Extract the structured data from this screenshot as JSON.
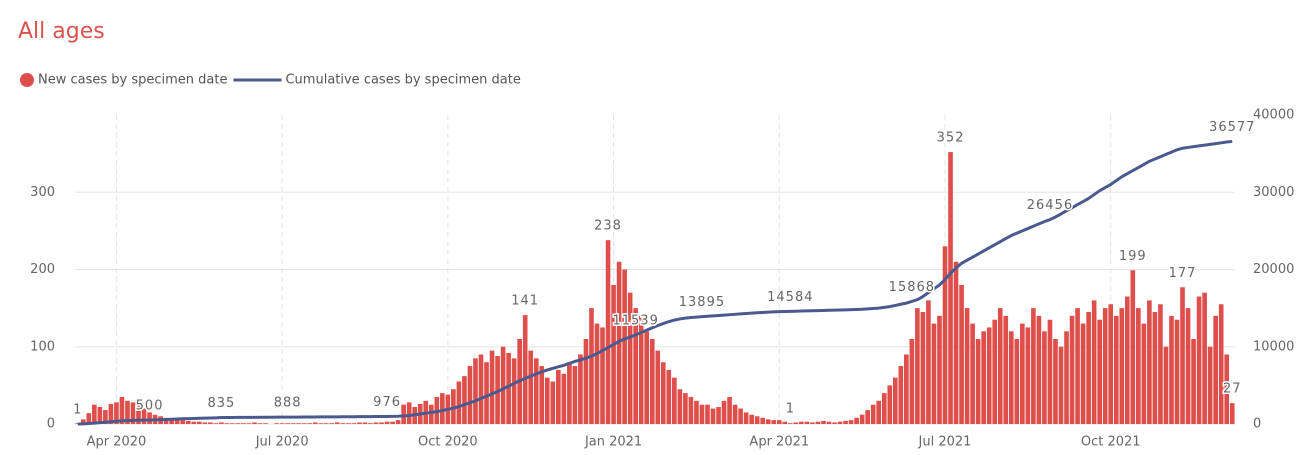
{
  "chart_data": {
    "type": "combo",
    "title": "All ages",
    "categories": [
      null,
      null,
      null,
      null,
      null,
      null,
      null,
      "Apr 2020",
      null,
      null,
      null,
      null,
      null,
      null,
      null,
      null,
      null,
      null,
      null,
      null,
      null,
      null,
      null,
      null,
      null,
      null,
      null,
      null,
      null,
      null,
      null,
      null,
      null,
      null,
      null,
      null,
      null,
      "Jul 2020",
      null,
      null,
      null,
      null,
      null,
      null,
      null,
      null,
      null,
      null,
      null,
      null,
      null,
      null,
      null,
      null,
      null,
      null,
      null,
      null,
      null,
      null,
      null,
      null,
      null,
      null,
      null,
      null,
      null,
      "Oct 2020",
      null,
      null,
      null,
      null,
      null,
      null,
      null,
      null,
      null,
      null,
      null,
      null,
      null,
      null,
      null,
      null,
      null,
      null,
      null,
      null,
      null,
      null,
      null,
      null,
      null,
      null,
      null,
      null,
      null,
      "Jan 2021",
      null,
      null,
      null,
      null,
      null,
      null,
      null,
      null,
      null,
      null,
      null,
      null,
      null,
      null,
      null,
      null,
      null,
      null,
      null,
      null,
      null,
      null,
      null,
      null,
      null,
      null,
      null,
      null,
      null,
      "Apr 2021",
      null,
      null,
      null,
      null,
      null,
      null,
      null,
      null,
      null,
      null,
      null,
      null,
      null,
      null,
      null,
      null,
      null,
      null,
      null,
      null,
      null,
      null,
      null,
      null,
      null,
      null,
      null,
      null,
      null,
      "Jul 2021",
      null,
      null,
      null,
      null,
      null,
      null,
      null,
      null,
      null,
      null,
      null,
      null,
      null,
      null,
      null,
      null,
      null,
      null,
      null,
      null,
      null,
      null,
      null,
      null,
      null,
      null,
      null,
      null,
      null,
      "Oct 2021",
      null,
      null,
      null,
      null,
      null,
      null,
      null,
      null,
      null,
      null,
      null,
      null,
      null,
      null,
      null,
      null,
      null,
      null,
      null,
      null,
      null,
      null
    ],
    "series": [
      {
        "name": "New cases by specimen date",
        "type": "bar",
        "color": "#de4f4b",
        "values": [
          1,
          6,
          14,
          25,
          22,
          18,
          26,
          28,
          35,
          30,
          28,
          24,
          20,
          15,
          12,
          10,
          8,
          6,
          5,
          5,
          4,
          3,
          3,
          2,
          2,
          1,
          2,
          1,
          1,
          1,
          1,
          1,
          2,
          1,
          1,
          0,
          1,
          1,
          1,
          1,
          1,
          1,
          1,
          2,
          1,
          1,
          1,
          2,
          1,
          1,
          1,
          2,
          2,
          1,
          2,
          2,
          3,
          3,
          5,
          25,
          28,
          22,
          26,
          30,
          25,
          35,
          40,
          38,
          45,
          55,
          62,
          75,
          85,
          90,
          80,
          95,
          88,
          100,
          92,
          85,
          110,
          141,
          95,
          85,
          75,
          60,
          55,
          70,
          65,
          80,
          75,
          90,
          110,
          150,
          130,
          125,
          238,
          180,
          210,
          200,
          170,
          150,
          140,
          120,
          110,
          95,
          80,
          70,
          60,
          45,
          40,
          35,
          30,
          25,
          25,
          20,
          22,
          30,
          35,
          25,
          20,
          15,
          12,
          10,
          8,
          6,
          5,
          5,
          3,
          1,
          2,
          3,
          3,
          2,
          3,
          4,
          3,
          2,
          3,
          4,
          5,
          8,
          12,
          18,
          25,
          30,
          40,
          50,
          60,
          75,
          90,
          110,
          150,
          145,
          160,
          130,
          140,
          230,
          352,
          210,
          180,
          150,
          130,
          110,
          120,
          125,
          135,
          150,
          140,
          120,
          110,
          130,
          125,
          150,
          140,
          120,
          135,
          110,
          100,
          120,
          140,
          150,
          130,
          145,
          160,
          135,
          150,
          155,
          140,
          150,
          165,
          199,
          150,
          130,
          160,
          145,
          155,
          100,
          140,
          135,
          177,
          150,
          110,
          165,
          170,
          100,
          140,
          155,
          90,
          27
        ],
        "value_labels": [
          null,
          null,
          null,
          null,
          null,
          null,
          null,
          null,
          null,
          null,
          null,
          null,
          null,
          null,
          null,
          null,
          null,
          null,
          null,
          null,
          null,
          null,
          null,
          null,
          null,
          null,
          null,
          null,
          null,
          null,
          null,
          null,
          null,
          null,
          null,
          null,
          null,
          null,
          null,
          null,
          null,
          null,
          null,
          null,
          null,
          null,
          null,
          null,
          null,
          null,
          null,
          null,
          null,
          null,
          null,
          null,
          null,
          null,
          null,
          null,
          null,
          null,
          null,
          null,
          null,
          null,
          null,
          null,
          null,
          null,
          null,
          null,
          null,
          null,
          null,
          null,
          null,
          null,
          null,
          null,
          null,
          "141",
          null,
          null,
          null,
          null,
          null,
          null,
          null,
          null,
          null,
          null,
          null,
          null,
          null,
          null,
          "238",
          null,
          null,
          null,
          null,
          null,
          null,
          null,
          null,
          null,
          null,
          null,
          null,
          null,
          null,
          null,
          null,
          null,
          null,
          null,
          null,
          null,
          null,
          null,
          null,
          null,
          null,
          null,
          null,
          null,
          null,
          null,
          null,
          "1",
          null,
          null,
          null,
          null,
          null,
          null,
          null,
          null,
          null,
          null,
          null,
          null,
          null,
          null,
          null,
          null,
          null,
          null,
          null,
          null,
          null,
          null,
          null,
          null,
          null,
          null,
          null,
          null,
          "352",
          null,
          null,
          null,
          null,
          null,
          null,
          null,
          null,
          null,
          null,
          null,
          null,
          null,
          null,
          null,
          null,
          null,
          null,
          null,
          null,
          null,
          null,
          null,
          null,
          null,
          null,
          null,
          null,
          null,
          null,
          null,
          null,
          "199",
          null,
          null,
          null,
          null,
          null,
          null,
          null,
          null,
          "177",
          null,
          null,
          null,
          null,
          null,
          null,
          null,
          null,
          "27"
        ]
      },
      {
        "name": "Cumulative cases by specimen date",
        "type": "line",
        "color": "#4b5a8e",
        "axis": "y2",
        "values": [
          1,
          20,
          60,
          110,
          170,
          230,
          290,
          350,
          400,
          440,
          470,
          485,
          495,
          500,
          530,
          560,
          590,
          620,
          650,
          680,
          700,
          720,
          740,
          760,
          780,
          800,
          835,
          840,
          845,
          850,
          855,
          860,
          865,
          870,
          875,
          880,
          884,
          886,
          888,
          890,
          895,
          900,
          905,
          910,
          915,
          920,
          925,
          930,
          935,
          940,
          945,
          950,
          955,
          960,
          965,
          970,
          976,
          985,
          1000,
          1050,
          1100,
          1200,
          1300,
          1400,
          1500,
          1600,
          1750,
          1900,
          2050,
          2250,
          2500,
          2750,
          3000,
          3300,
          3600,
          3900,
          4200,
          4550,
          4900,
          5250,
          5600,
          5900,
          6200,
          6500,
          6750,
          7000,
          7200,
          7400,
          7600,
          7850,
          8100,
          8300,
          8500,
          8800,
          9100,
          9500,
          9900,
          10300,
          10700,
          11000,
          11250,
          11539,
          11850,
          12150,
          12450,
          12750,
          13000,
          13250,
          13450,
          13600,
          13700,
          13780,
          13840,
          13895,
          13950,
          14000,
          14050,
          14100,
          14150,
          14200,
          14250,
          14300,
          14350,
          14400,
          14440,
          14480,
          14520,
          14550,
          14570,
          14584,
          14600,
          14620,
          14640,
          14660,
          14680,
          14700,
          14720,
          14740,
          14760,
          14780,
          14800,
          14820,
          14850,
          14900,
          14950,
          15000,
          15100,
          15200,
          15350,
          15500,
          15650,
          15868,
          16100,
          16500,
          17000,
          17500,
          18000,
          18700,
          19500,
          20200,
          20800,
          21200,
          21600,
          22000,
          22400,
          22800,
          23200,
          23600,
          24000,
          24400,
          24700,
          25000,
          25300,
          25600,
          25900,
          26200,
          26456,
          26800,
          27200,
          27600,
          28000,
          28400,
          28800,
          29200,
          29700,
          30200,
          30600,
          31000,
          31500,
          32000,
          32400,
          32800,
          33200,
          33600,
          34000,
          34300,
          34600,
          34900,
          35200,
          35500,
          35700,
          35800,
          35900,
          36000,
          36100,
          36200,
          36300,
          36400,
          36500,
          36577
        ],
        "value_labels": [
          "1",
          null,
          null,
          null,
          null,
          null,
          null,
          null,
          null,
          null,
          null,
          null,
          null,
          "500",
          null,
          null,
          null,
          null,
          null,
          null,
          null,
          null,
          null,
          null,
          null,
          null,
          "835",
          null,
          null,
          null,
          null,
          null,
          null,
          null,
          null,
          null,
          null,
          null,
          "888",
          null,
          null,
          null,
          null,
          null,
          null,
          null,
          null,
          null,
          null,
          null,
          null,
          null,
          null,
          null,
          null,
          null,
          "976",
          null,
          null,
          null,
          null,
          null,
          null,
          null,
          null,
          null,
          null,
          null,
          null,
          null,
          null,
          null,
          null,
          null,
          null,
          null,
          null,
          null,
          null,
          null,
          null,
          null,
          null,
          null,
          null,
          null,
          null,
          null,
          null,
          null,
          null,
          null,
          null,
          null,
          null,
          null,
          null,
          null,
          null,
          null,
          null,
          "11539",
          null,
          null,
          null,
          null,
          null,
          null,
          null,
          null,
          null,
          null,
          null,
          "13895",
          null,
          null,
          null,
          null,
          null,
          null,
          null,
          null,
          null,
          null,
          null,
          null,
          null,
          null,
          null,
          "14584",
          null,
          null,
          null,
          null,
          null,
          null,
          null,
          null,
          null,
          null,
          null,
          null,
          null,
          null,
          null,
          null,
          null,
          null,
          null,
          null,
          null,
          "15868",
          null,
          null,
          null,
          null,
          null,
          null,
          null,
          null,
          null,
          null,
          null,
          null,
          null,
          null,
          null,
          null,
          null,
          null,
          null,
          null,
          null,
          null,
          null,
          null,
          "26456",
          null,
          null,
          null,
          null,
          null,
          null,
          null,
          null,
          null,
          null,
          null,
          null,
          null,
          null,
          null,
          null,
          null,
          null,
          null,
          null,
          null,
          null,
          null,
          null,
          null,
          null,
          null,
          null,
          null,
          null,
          null,
          null,
          "36577"
        ]
      }
    ],
    "ylim": [
      0,
      400
    ],
    "yticks": [
      0,
      100,
      200,
      300
    ],
    "y2lim": [
      0,
      40000
    ],
    "y2ticks": [
      0,
      10000,
      20000,
      30000,
      40000
    ],
    "grid": true
  }
}
